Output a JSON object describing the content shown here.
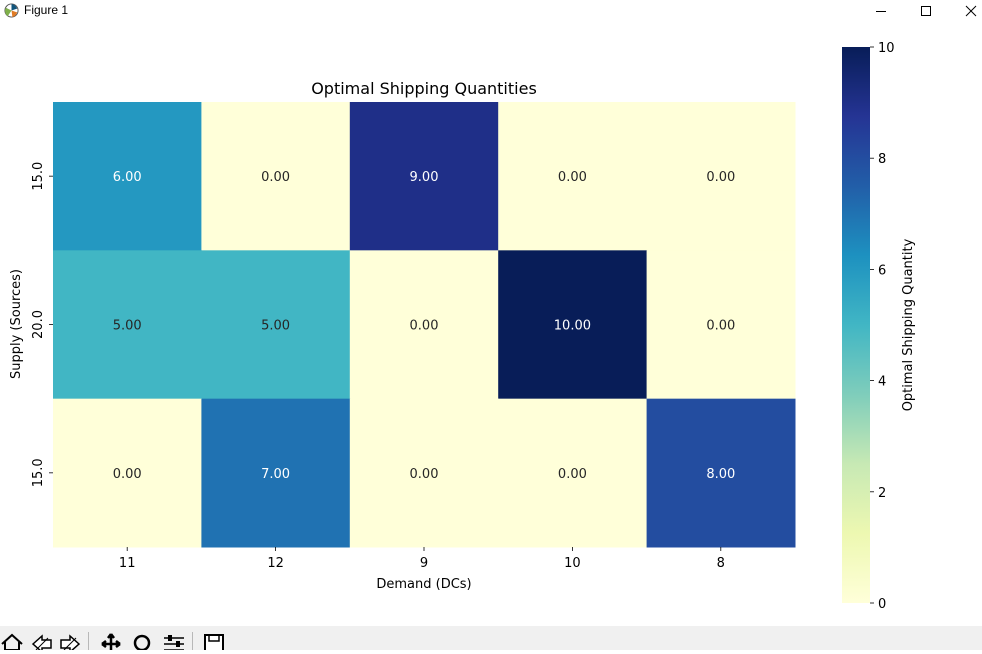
{
  "window": {
    "title": "Figure 1"
  },
  "chart_data": {
    "type": "heatmap",
    "title": "Optimal Shipping Quantities",
    "xlabel": "Demand (DCs)",
    "ylabel": "Supply (Sources)",
    "x_categories": [
      "11",
      "12",
      "9",
      "10",
      "8"
    ],
    "y_categories": [
      "15.0",
      "20.0",
      "15.0"
    ],
    "values": [
      [
        6,
        0,
        9,
        0,
        0
      ],
      [
        5,
        5,
        0,
        10,
        0
      ],
      [
        0,
        7,
        0,
        0,
        8
      ]
    ],
    "value_labels": [
      [
        "6.00",
        "0.00",
        "9.00",
        "0.00",
        "0.00"
      ],
      [
        "5.00",
        "5.00",
        "0.00",
        "10.00",
        "0.00"
      ],
      [
        "0.00",
        "7.00",
        "0.00",
        "0.00",
        "8.00"
      ]
    ],
    "colormap": "YlGnBu",
    "vmin": 0,
    "vmax": 10,
    "colorbar_label": "Optimal Shipping Quantity",
    "colorbar_ticks": [
      "0",
      "2",
      "4",
      "6",
      "8",
      "10"
    ]
  },
  "toolbar": {
    "buttons": [
      "home-icon",
      "back-icon",
      "forward-icon",
      "pan-icon",
      "zoom-icon",
      "configure-icon",
      "save-icon"
    ]
  }
}
